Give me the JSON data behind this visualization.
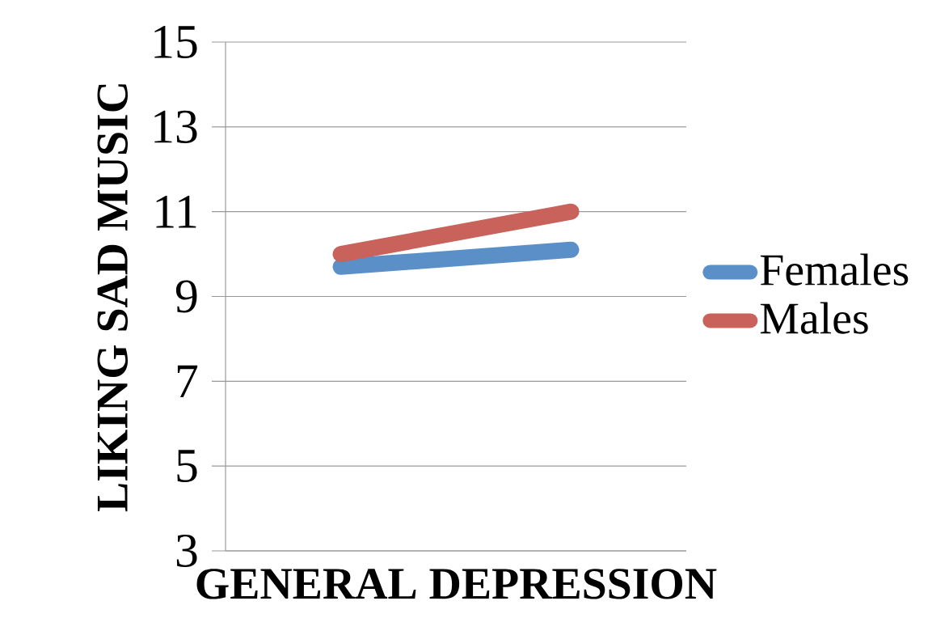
{
  "chart_data": {
    "type": "line",
    "xlabel": "GENERAL DEPRESSION",
    "ylabel": "LIKING SAD MUSIC",
    "categories": [
      null,
      null
    ],
    "series": [
      {
        "name": "Females",
        "color": "#5b8fc7",
        "values": [
          9.7,
          10.1
        ]
      },
      {
        "name": "Males",
        "color": "#c9625a",
        "values": [
          10.0,
          11.0
        ]
      }
    ],
    "ylim": [
      3,
      15
    ],
    "yticks": [
      3,
      5,
      7,
      9,
      11,
      13,
      15
    ],
    "grid": "y",
    "legend": "right",
    "line_style": "solid"
  }
}
